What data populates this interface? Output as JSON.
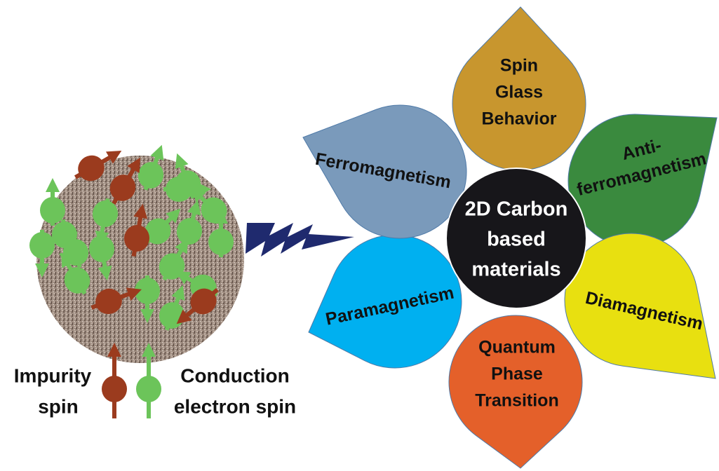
{
  "center": {
    "lines": [
      "2D Carbon",
      "based",
      "materials"
    ]
  },
  "petals": [
    {
      "lines": [
        "Spin",
        "Glass",
        "Behavior"
      ]
    },
    {
      "lines": [
        "Anti-",
        "ferromagnetism"
      ]
    },
    {
      "lines": [
        "Diamagnetism"
      ]
    },
    {
      "lines": [
        "Quantum",
        "Phase",
        "Transition"
      ]
    },
    {
      "lines": [
        "Paramagnetism"
      ]
    },
    {
      "lines": [
        "Ferromagnetism"
      ]
    }
  ],
  "legend": {
    "impurity": [
      "Impurity",
      "spin"
    ],
    "conduction": [
      "Conduction",
      "electron spin"
    ]
  }
}
